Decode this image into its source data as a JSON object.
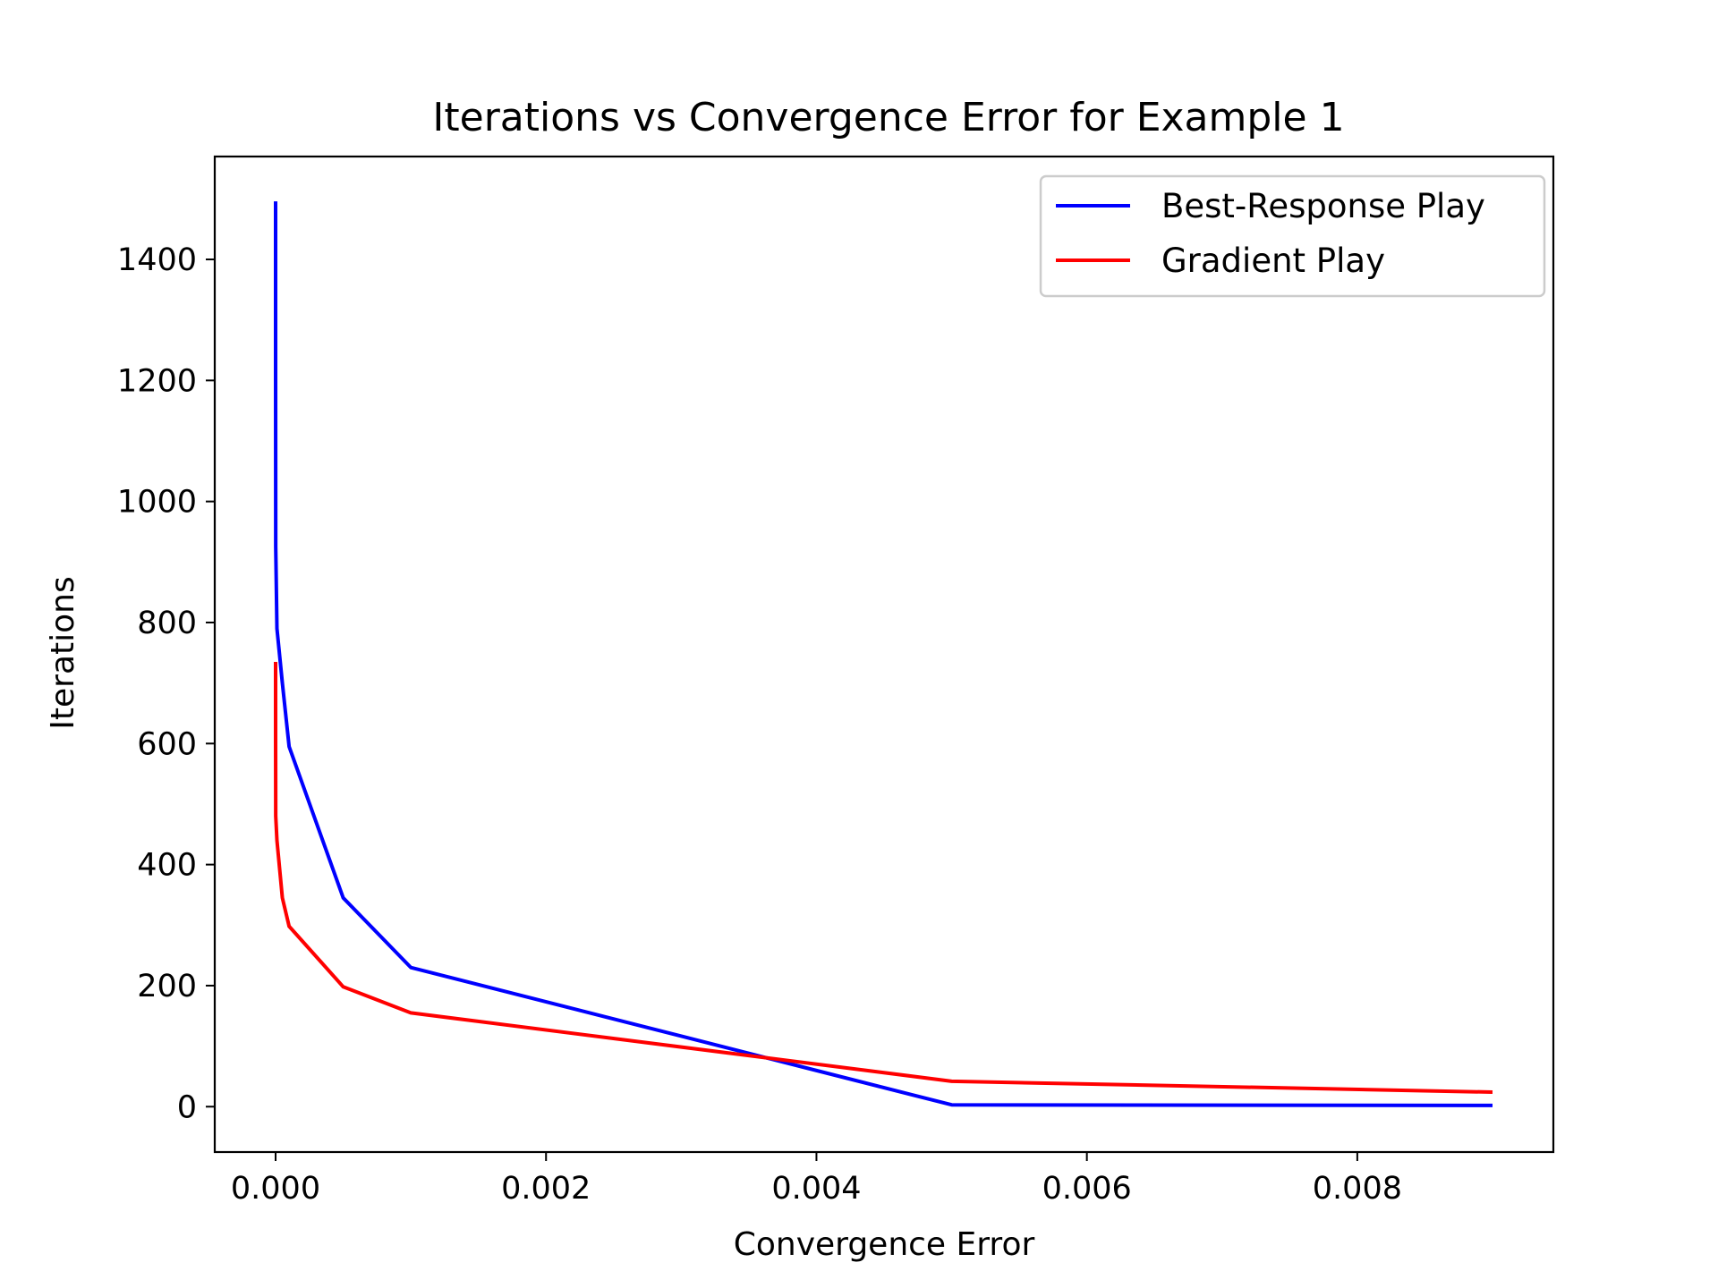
{
  "chart_data": {
    "type": "line",
    "title": "Iterations vs Convergence Error for Example 1",
    "xlabel": "Convergence Error",
    "ylabel": "Iterations",
    "xlim": [
      -0.00045,
      0.00945
    ],
    "ylim": [
      -75,
      1570
    ],
    "xticks": [
      0.0,
      0.002,
      0.004,
      0.006,
      0.008
    ],
    "xtick_labels": [
      "0.000",
      "0.002",
      "0.004",
      "0.006",
      "0.008"
    ],
    "yticks": [
      0,
      200,
      400,
      600,
      800,
      1000,
      1200,
      1400
    ],
    "ytick_labels": [
      "0",
      "200",
      "400",
      "600",
      "800",
      "1000",
      "1200",
      "1400"
    ],
    "grid": false,
    "legend_position": "top-right",
    "series": [
      {
        "name": "Best-Response Play",
        "color": "#0000ff",
        "x": [
          1e-08,
          1e-07,
          1e-06,
          1e-05,
          5e-05,
          0.0001,
          0.0005,
          0.001,
          0.005,
          0.009
        ],
        "y": [
          1496,
          1200,
          925,
          790,
          700,
          595,
          345,
          230,
          3,
          2
        ]
      },
      {
        "name": "Gradient Play",
        "color": "#ff0000",
        "x": [
          1e-08,
          1e-07,
          1e-06,
          1e-05,
          5e-05,
          0.0001,
          0.0005,
          0.001,
          0.005,
          0.009
        ],
        "y": [
          735,
          600,
          480,
          440,
          345,
          298,
          198,
          155,
          42,
          24
        ]
      }
    ]
  }
}
